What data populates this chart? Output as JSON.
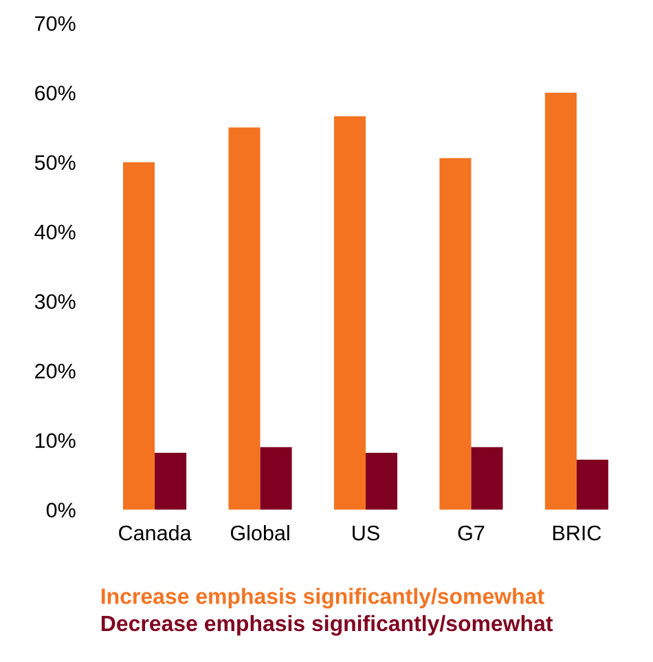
{
  "chart_data": {
    "type": "bar",
    "categories": [
      "Canada",
      "Global",
      "US",
      "G7",
      "BRIC"
    ],
    "series": [
      {
        "name": "Increase emphasis significantly/somewhat",
        "color": "#f47321",
        "values": [
          50,
          55,
          56.6,
          50.6,
          60
        ]
      },
      {
        "name": "Decrease emphasis significantly/somewhat",
        "color": "#7f0020",
        "values": [
          8.2,
          9,
          8.2,
          9,
          7.2
        ]
      }
    ],
    "ylim": [
      0,
      70
    ],
    "yticks": [
      {
        "value": 0,
        "label": "0%"
      },
      {
        "value": 10,
        "label": "10%"
      },
      {
        "value": 20,
        "label": "20%"
      },
      {
        "value": 30,
        "label": "30%"
      },
      {
        "value": 40,
        "label": "40%"
      },
      {
        "value": 50,
        "label": "50%"
      },
      {
        "value": 60,
        "label": "60%"
      },
      {
        "value": 70,
        "label": "70%"
      }
    ],
    "grid": false,
    "legend": "bottom"
  }
}
